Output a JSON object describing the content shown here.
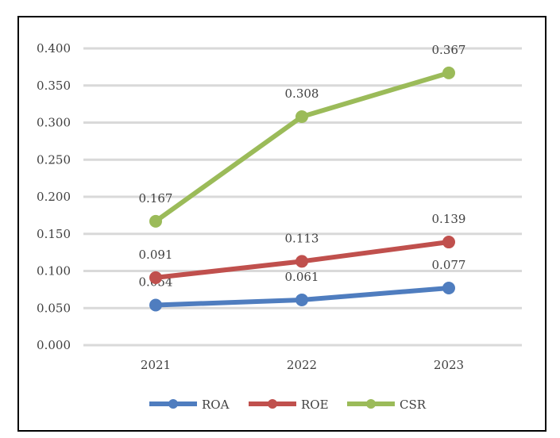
{
  "chart_data": {
    "type": "line",
    "categories": [
      "2021",
      "2022",
      "2023"
    ],
    "series": [
      {
        "name": "ROA",
        "values": [
          0.054,
          0.061,
          0.077
        ],
        "labels": [
          "0.054",
          "0.061",
          "0.077"
        ],
        "color": "#4f7dbf"
      },
      {
        "name": "ROE",
        "values": [
          0.091,
          0.113,
          0.139
        ],
        "labels": [
          "0.091",
          "0.113",
          "0.139"
        ],
        "color": "#c0504d"
      },
      {
        "name": "CSR",
        "values": [
          0.167,
          0.308,
          0.367
        ],
        "labels": [
          "0.167",
          "0.308",
          "0.367"
        ],
        "color": "#9bbb59"
      }
    ],
    "ylim": [
      0,
      0.4
    ],
    "yticks": [
      "0.000",
      "0.050",
      "0.100",
      "0.150",
      "0.200",
      "0.250",
      "0.300",
      "0.350",
      "0.400"
    ],
    "grid": true,
    "legend": "bottom"
  }
}
